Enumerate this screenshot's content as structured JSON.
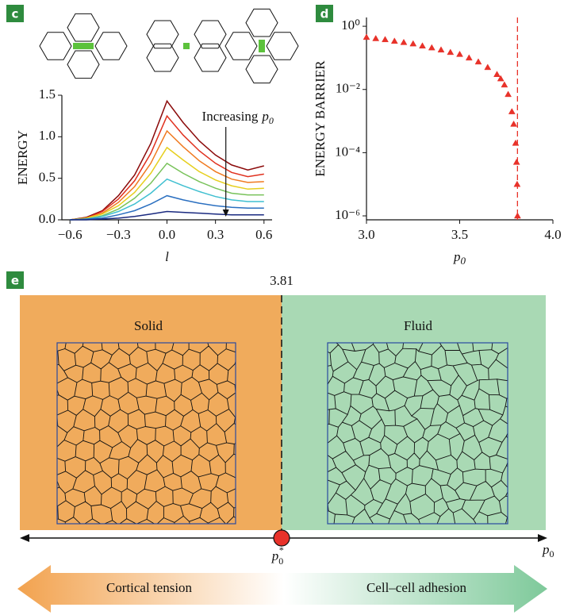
{
  "chart_data": [
    {
      "type": "line",
      "label": "c",
      "xlabel": "l",
      "ylabel": "ENERGY",
      "annotation": "Increasing",
      "annotation_symbol": "p",
      "annotation_subscript": "0",
      "x": [
        -0.6,
        -0.5,
        -0.4,
        -0.3,
        -0.2,
        -0.1,
        0,
        0.1,
        0.2,
        0.3,
        0.4,
        0.5,
        0.6
      ],
      "series": [
        {
          "color": "#8b0a0a",
          "values": [
            0,
            0.03,
            0.11,
            0.29,
            0.54,
            0.92,
            1.43,
            1.17,
            0.95,
            0.78,
            0.66,
            0.6,
            0.65
          ]
        },
        {
          "color": "#e0301e",
          "values": [
            0,
            0.02,
            0.1,
            0.25,
            0.47,
            0.8,
            1.25,
            1.02,
            0.83,
            0.68,
            0.57,
            0.52,
            0.55
          ]
        },
        {
          "color": "#f07a20",
          "values": [
            0,
            0.02,
            0.08,
            0.21,
            0.4,
            0.68,
            1.07,
            0.88,
            0.71,
            0.58,
            0.49,
            0.45,
            0.46
          ]
        },
        {
          "color": "#e6cf1e",
          "values": [
            0,
            0.02,
            0.07,
            0.17,
            0.33,
            0.56,
            0.87,
            0.72,
            0.58,
            0.48,
            0.41,
            0.37,
            0.38
          ]
        },
        {
          "color": "#78c25a",
          "values": [
            0,
            0.01,
            0.05,
            0.13,
            0.26,
            0.44,
            0.68,
            0.56,
            0.46,
            0.38,
            0.32,
            0.3,
            0.3
          ]
        },
        {
          "color": "#3fbfd0",
          "values": [
            0,
            0.01,
            0.04,
            0.1,
            0.19,
            0.32,
            0.49,
            0.41,
            0.34,
            0.28,
            0.24,
            0.22,
            0.22
          ]
        },
        {
          "color": "#2a6fc0",
          "values": [
            0,
            0.01,
            0.02,
            0.06,
            0.11,
            0.19,
            0.29,
            0.24,
            0.2,
            0.17,
            0.15,
            0.14,
            0.14
          ]
        },
        {
          "color": "#1a2a80",
          "values": [
            0,
            0,
            0.01,
            0.02,
            0.04,
            0.07,
            0.1,
            0.09,
            0.08,
            0.07,
            0.06,
            0.06,
            0.06
          ]
        }
      ],
      "xlim": [
        -0.65,
        0.65
      ],
      "xticks": [
        {
          "value": -0.6,
          "label": "−0.6"
        },
        {
          "value": -0.3,
          "label": "−0.3"
        },
        {
          "value": 0,
          "label": "0.0"
        },
        {
          "value": 0.3,
          "label": "0.3"
        },
        {
          "value": 0.6,
          "label": "0.6"
        }
      ],
      "ylim": [
        0,
        1.5
      ],
      "yticks": [
        {
          "value": 0,
          "label": "0.0"
        },
        {
          "value": 0.5,
          "label": "0.5"
        },
        {
          "value": 1,
          "label": "1.0"
        },
        {
          "value": 1.5,
          "label": "1.5"
        }
      ]
    },
    {
      "type": "scatter",
      "label": "d",
      "xlabel": "p",
      "xlabel_subscript": "0",
      "ylabel": "ENERGY BARRIER",
      "color": "#e8322a",
      "log_y": true,
      "vline": 3.81,
      "x": [
        3.0,
        3.05,
        3.1,
        3.15,
        3.2,
        3.25,
        3.3,
        3.35,
        3.4,
        3.45,
        3.5,
        3.55,
        3.6,
        3.65,
        3.7,
        3.72,
        3.74,
        3.76,
        3.78,
        3.79,
        3.8,
        3.805,
        3.808,
        3.81
      ],
      "values": [
        0.45,
        0.41,
        0.38,
        0.34,
        0.31,
        0.28,
        0.24,
        0.21,
        0.18,
        0.15,
        0.13,
        0.1,
        0.075,
        0.05,
        0.03,
        0.022,
        0.014,
        0.007,
        0.002,
        0.0008,
        0.0002,
        5e-05,
        1e-05,
        1e-06
      ],
      "xlim": [
        3.0,
        4.0
      ],
      "xticks": [
        {
          "value": 3,
          "label": "3.0"
        },
        {
          "value": 3.5,
          "label": "3.5"
        },
        {
          "value": 4,
          "label": "4.0"
        }
      ],
      "ylim": [
        7.5e-07,
        1.9
      ],
      "yticks": [
        {
          "value": 1,
          "label": "10⁰"
        },
        {
          "value": 0.01,
          "label": "10⁻²"
        },
        {
          "value": 0.0001,
          "label": "10⁻⁴"
        },
        {
          "value": 1e-06,
          "label": "10⁻⁶"
        }
      ]
    }
  ],
  "diagram": {
    "label": "e",
    "threshold": "3.81",
    "left_phase": "Solid",
    "right_phase": "Fluid",
    "critical_symbol": "p",
    "critical_subscript": "0",
    "critical_superscript": "*",
    "axis_symbol": "p",
    "axis_subscript": "0",
    "left_arrow": "Cortical tension",
    "right_arrow": "Cell–cell adhesion"
  }
}
